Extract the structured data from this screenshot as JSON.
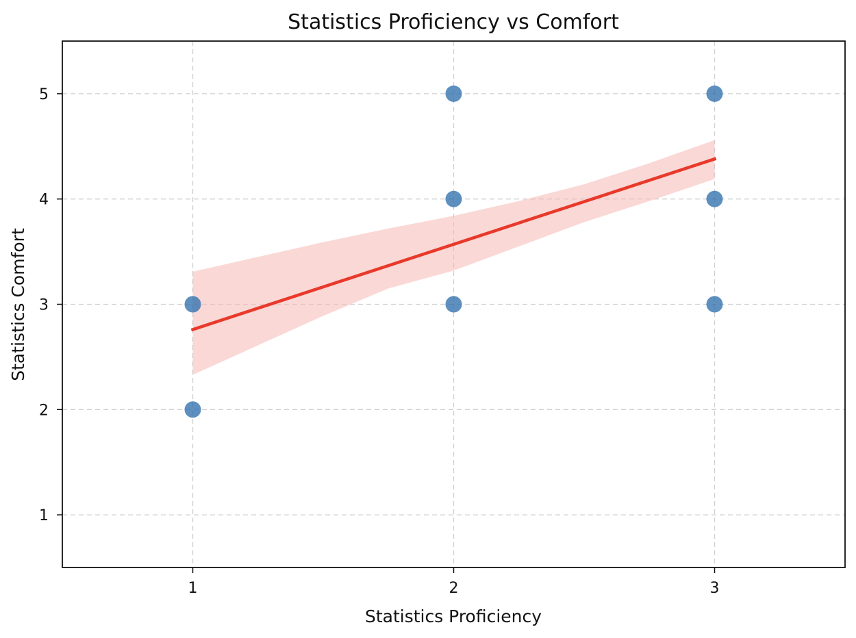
{
  "colors": {
    "points": "#2f6fad",
    "fit_line": "#e8392a",
    "confidence_band": "#f5b8b5",
    "grid": "#b0b0b0",
    "frame": "#111111"
  },
  "chart_data": {
    "type": "scatter",
    "title": "Statistics Proficiency vs Comfort",
    "xlabel": "Statistics Proficiency",
    "ylabel": "Statistics Comfort",
    "xlim": [
      0.5,
      3.5
    ],
    "ylim": [
      0.5,
      5.5
    ],
    "x_ticks": [
      1,
      2,
      3
    ],
    "x_tick_labels": [
      "1",
      "2",
      "3"
    ],
    "y_ticks": [
      1,
      2,
      3,
      4,
      5
    ],
    "y_tick_labels": [
      "1",
      "2",
      "3",
      "4",
      "5"
    ],
    "grid": true,
    "grid_style": "dashed",
    "points": [
      {
        "x": 1,
        "y": 3
      },
      {
        "x": 1,
        "y": 2
      },
      {
        "x": 2,
        "y": 5
      },
      {
        "x": 2,
        "y": 4
      },
      {
        "x": 2,
        "y": 3
      },
      {
        "x": 3,
        "y": 5
      },
      {
        "x": 3,
        "y": 4
      },
      {
        "x": 3,
        "y": 3
      }
    ],
    "regression_line": {
      "x": [
        1,
        3
      ],
      "y": [
        2.76,
        4.38
      ]
    },
    "confidence_band": {
      "x": [
        1,
        1.25,
        1.5,
        1.75,
        2,
        2.25,
        2.5,
        2.75,
        3
      ],
      "upper": [
        3.31,
        3.45,
        3.59,
        3.72,
        3.84,
        3.98,
        4.14,
        4.34,
        4.56
      ],
      "lower": [
        2.33,
        2.61,
        2.89,
        3.15,
        3.32,
        3.55,
        3.78,
        3.98,
        4.19
      ]
    }
  }
}
